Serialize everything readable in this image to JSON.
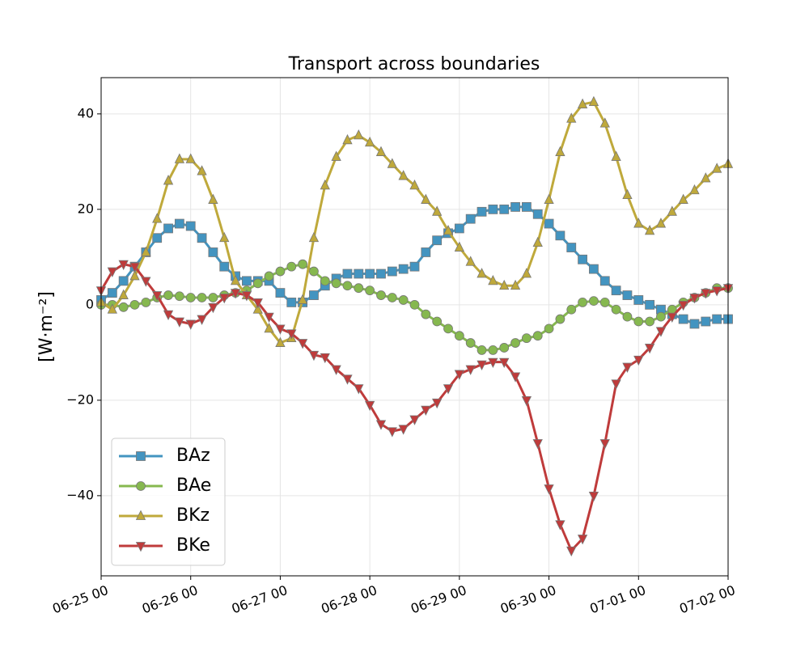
{
  "chart_data": {
    "type": "line",
    "title": "Transport across boundaries",
    "y_label": "[W·m⁻²]",
    "x": [
      "06-25 00",
      "06-25 03",
      "06-25 06",
      "06-25 09",
      "06-25 12",
      "06-25 15",
      "06-25 18",
      "06-25 21",
      "06-26 00",
      "06-26 03",
      "06-26 06",
      "06-26 09",
      "06-26 12",
      "06-26 15",
      "06-26 18",
      "06-26 21",
      "06-27 00",
      "06-27 03",
      "06-27 06",
      "06-27 09",
      "06-27 12",
      "06-27 15",
      "06-27 18",
      "06-27 21",
      "06-28 00",
      "06-28 03",
      "06-28 06",
      "06-28 09",
      "06-28 12",
      "06-28 15",
      "06-28 18",
      "06-28 21",
      "06-29 00",
      "06-29 03",
      "06-29 06",
      "06-29 09",
      "06-29 12",
      "06-29 15",
      "06-29 18",
      "06-29 21",
      "06-30 00",
      "06-30 03",
      "06-30 06",
      "06-30 09",
      "06-30 12",
      "06-30 15",
      "06-30 18",
      "06-30 21",
      "07-01 00",
      "07-01 03",
      "07-01 06",
      "07-01 09",
      "07-01 12",
      "07-01 15",
      "07-01 18",
      "07-01 21",
      "07-02 00"
    ],
    "series": [
      {
        "name": "BAz",
        "color": "#4394c0",
        "marker": "square",
        "values": [
          1,
          2.5,
          5,
          8,
          11,
          14,
          16,
          17,
          16.5,
          14,
          11,
          8,
          6,
          5,
          5,
          5,
          2.5,
          0.5,
          0.5,
          2,
          4,
          5.5,
          6.5,
          6.5,
          6.5,
          6.5,
          7,
          7.5,
          8,
          11,
          13.5,
          15,
          16,
          18,
          19.5,
          20,
          20,
          20.5,
          20.5,
          19,
          17,
          14.5,
          12,
          9.5,
          7.5,
          5,
          3,
          2,
          1,
          0,
          -1,
          -2,
          -3,
          -4,
          -3.5,
          -3,
          -3
        ]
      },
      {
        "name": "BAe",
        "color": "#86b84f",
        "marker": "circle",
        "values": [
          0,
          0,
          -0.5,
          0,
          0.5,
          1.5,
          2,
          1.8,
          1.5,
          1.5,
          1.5,
          2,
          2.5,
          3,
          4.5,
          6,
          7,
          8,
          8.5,
          7,
          5,
          4.5,
          4,
          3.5,
          3,
          2,
          1.5,
          1,
          0,
          -2,
          -3.5,
          -5,
          -6.5,
          -8,
          -9.5,
          -9.5,
          -9,
          -8,
          -7,
          -6.5,
          -5,
          -3,
          -1,
          0.5,
          0.8,
          0.5,
          -1,
          -2.5,
          -3.5,
          -3.5,
          -2.5,
          -1,
          0.5,
          1.5,
          2.5,
          3.5,
          3.5
        ]
      },
      {
        "name": "BKz",
        "color": "#bfa93b",
        "marker": "triangle-up",
        "values": [
          0.5,
          -1,
          2,
          6,
          11,
          18,
          26,
          30.5,
          30.5,
          28,
          22,
          14,
          5,
          2,
          -1,
          -5,
          -8,
          -7,
          1,
          14,
          25,
          31,
          34.5,
          35.5,
          34,
          32,
          29.5,
          27,
          25,
          22,
          19.5,
          15.5,
          12,
          9,
          6.5,
          5,
          4,
          4,
          6.5,
          13,
          22,
          32,
          39,
          42,
          42.5,
          38,
          31,
          23,
          17,
          15.5,
          17,
          19.5,
          22,
          24,
          26.5,
          28.5,
          29.5
        ]
      },
      {
        "name": "BKe",
        "color": "#bf3b3b",
        "marker": "triangle-down",
        "values": [
          3,
          7,
          8.5,
          8,
          5,
          2,
          -2,
          -3.5,
          -4,
          -3,
          -0.5,
          1.5,
          2.5,
          2,
          0.5,
          -2.5,
          -5,
          -6,
          -8,
          -10.5,
          -11,
          -13.5,
          -15.5,
          -17.5,
          -21,
          -25,
          -26.5,
          -26,
          -24,
          -22,
          -20.5,
          -17.5,
          -14.5,
          -13.5,
          -12.5,
          -12,
          -12,
          -15,
          -20,
          -29,
          -38.5,
          -46,
          -51.5,
          -49,
          -40,
          -29,
          -16.5,
          -13,
          -11.5,
          -9,
          -5.5,
          -2.5,
          0,
          1.5,
          2.5,
          3,
          3.5
        ]
      }
    ],
    "xlim": [
      "06-25 00",
      "07-02 00"
    ],
    "xticks": [
      "06-25 00",
      "06-26 00",
      "06-27 00",
      "06-28 00",
      "06-29 00",
      "06-30 00",
      "07-01 00",
      "07-02 00"
    ],
    "ylim": [
      -56.8,
      47.6
    ],
    "yticks": [
      {
        "value": -40,
        "label": "−40"
      },
      {
        "value": -20,
        "label": "−20"
      },
      0,
      20,
      40
    ],
    "grid": true,
    "legend": "lower left"
  }
}
